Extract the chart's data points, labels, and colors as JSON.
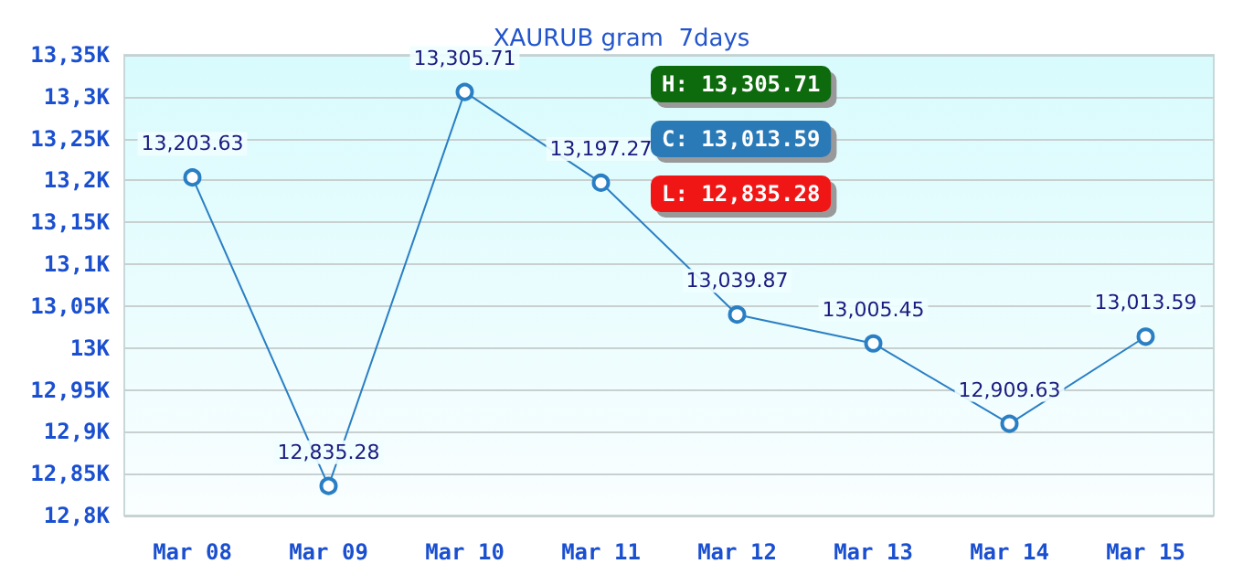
{
  "chart_data": {
    "type": "line",
    "title": "XAURUB gram  7days",
    "categories": [
      "Mar 08",
      "Mar 09",
      "Mar 10",
      "Mar 11",
      "Mar 12",
      "Mar 13",
      "Mar 14",
      "Mar 15"
    ],
    "series": [
      {
        "color": "#2a7fc4",
        "values": [
          13203.63,
          12835.28,
          13305.71,
          13197.27,
          13039.87,
          13005.45,
          12909.63,
          13013.59
        ],
        "value_labels": [
          "13,203.63",
          "12,835.28",
          "13,305.71",
          "13,197.27",
          "13,039.87",
          "13,005.45",
          "12,909.63",
          "13,013.59"
        ]
      }
    ],
    "ylim": [
      12800,
      13350
    ],
    "yticks": [
      {
        "value": 12800,
        "label": "12,8K"
      },
      {
        "value": 12850,
        "label": "12,85K"
      },
      {
        "value": 12900,
        "label": "12,9K"
      },
      {
        "value": 12950,
        "label": "12,95K"
      },
      {
        "value": 13000,
        "label": "13K"
      },
      {
        "value": 13050,
        "label": "13,05K"
      },
      {
        "value": 13100,
        "label": "13,1K"
      },
      {
        "value": 13150,
        "label": "13,15K"
      },
      {
        "value": 13200,
        "label": "13,2K"
      },
      {
        "value": 13250,
        "label": "13,25K"
      },
      {
        "value": 13300,
        "label": "13,3K"
      },
      {
        "value": 13350,
        "label": "13,35K"
      }
    ],
    "annotations": [
      "H: 13,305.71",
      "C: 13,013.59",
      "L: 12,835.28"
    ],
    "grid": "y",
    "marker": "circle",
    "line_style": "solid"
  }
}
